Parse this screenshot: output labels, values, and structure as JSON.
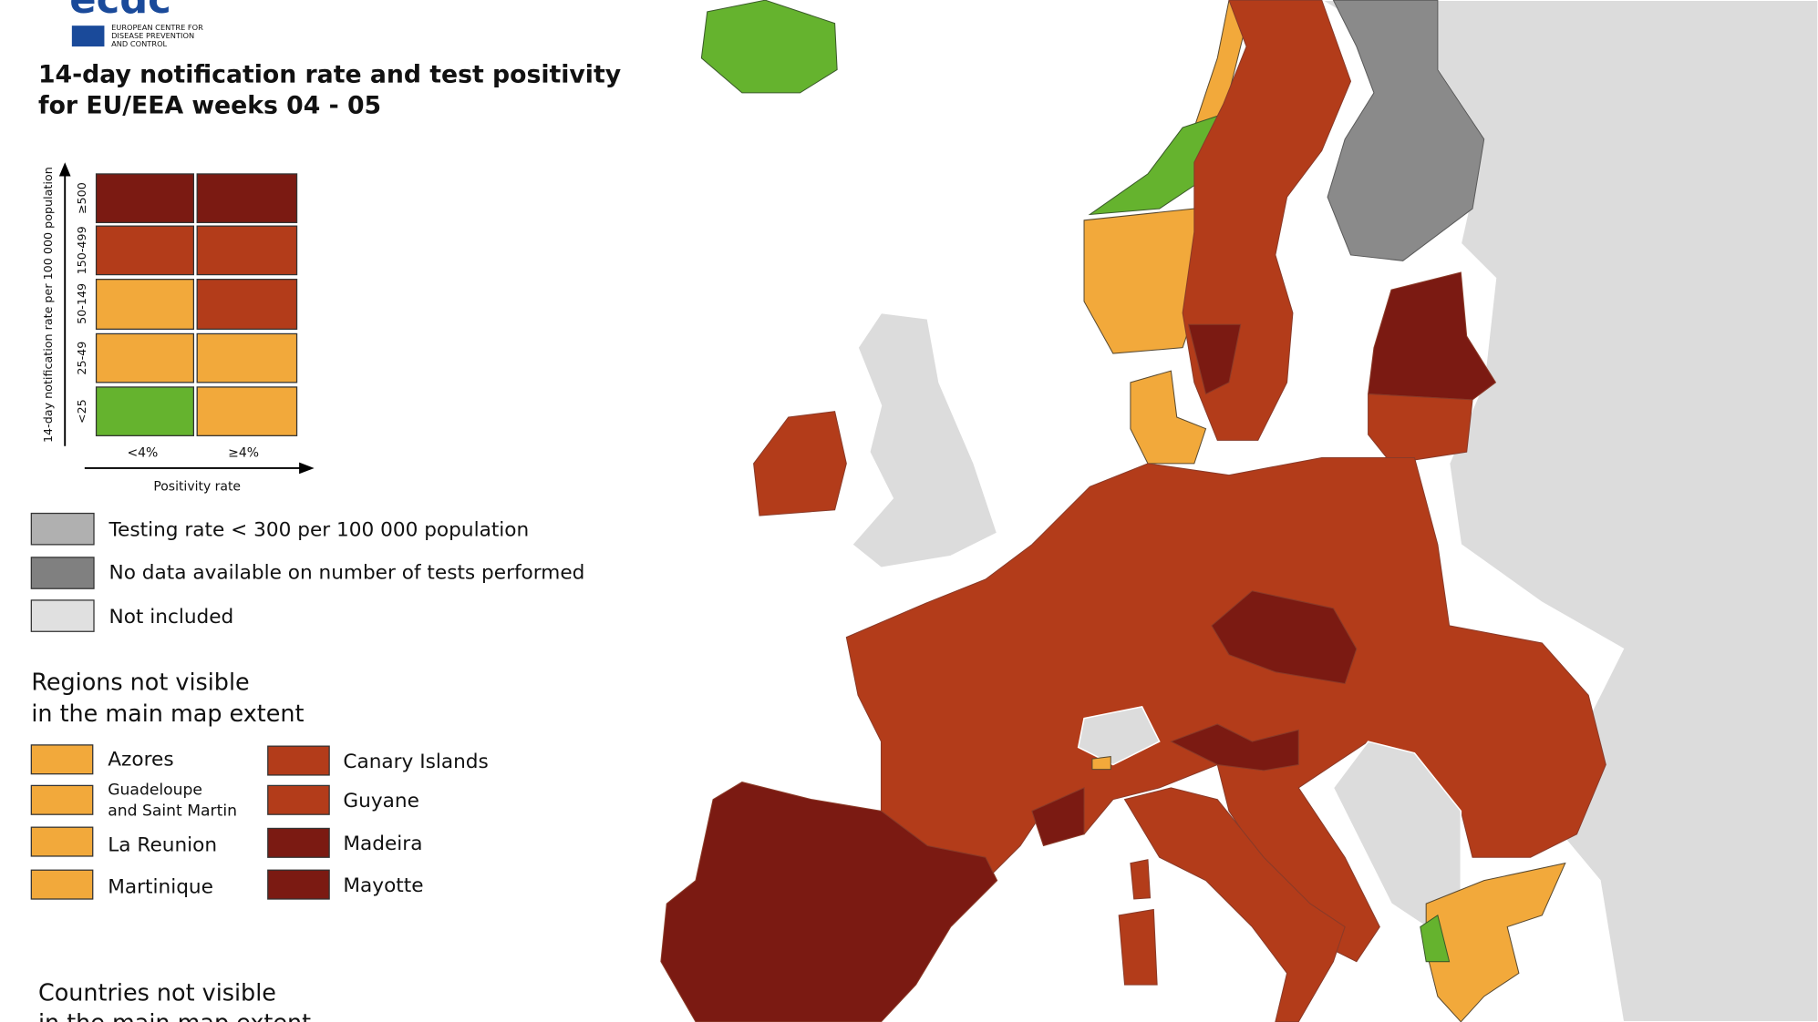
{
  "header": {
    "logo_text": "ecdc",
    "org_lines": [
      "EUROPEAN CENTRE FOR",
      "DISEASE PREVENTION",
      "AND CONTROL"
    ],
    "title_lines": [
      "14-day notification rate and test positivity",
      "for EU/EEA weeks 04 - 05"
    ]
  },
  "matrix": {
    "y_axis_label": "14-day notification rate per 100 000 population",
    "row_labels": [
      "≥500",
      "150-499",
      "50-149",
      "25-49",
      "<25"
    ],
    "col_labels": [
      "<4%",
      "≥4%"
    ],
    "x_axis_label": "Positivity rate"
  },
  "legend": {
    "items": [
      "Testing rate < 300 per 100 000 population",
      "No data available on number of tests performed",
      "Not included"
    ]
  },
  "regions": {
    "title_lines": [
      "Regions not visible",
      "in the main map extent"
    ],
    "left": [
      [
        "Azores"
      ],
      [
        "Guadeloupe",
        "and Saint Martin"
      ],
      [
        "La Reunion"
      ],
      [
        "Martinique"
      ]
    ],
    "right": [
      [
        "Canary Islands"
      ],
      [
        "Guyane"
      ],
      [
        "Madeira"
      ],
      [
        "Mayotte"
      ]
    ]
  },
  "countries": {
    "title_lines": [
      "Countries not visible",
      "in the main map extent"
    ]
  }
}
